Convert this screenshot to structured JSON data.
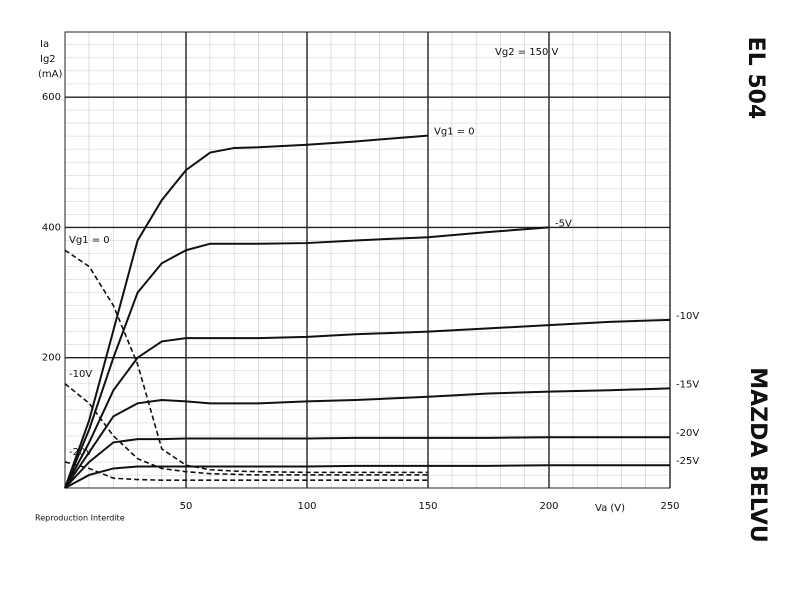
{
  "chart_data": {
    "type": "line",
    "title": "EL 504",
    "brand": "MAZDA BELVU",
    "subtitle": "Vg2 = 150 V",
    "y_label": [
      "Ia",
      "Ig2",
      "(mA)"
    ],
    "x_label": "Va (V)",
    "note": "Reproduction Interdite",
    "xlim": [
      0,
      250
    ],
    "ylim": [
      0,
      700
    ],
    "xticks": [
      50,
      100,
      150,
      200,
      250
    ],
    "yticks": [
      200,
      400,
      600
    ],
    "grid": true,
    "x": [
      0,
      10,
      20,
      30,
      40,
      50,
      60,
      70,
      80,
      100,
      120,
      150,
      175,
      200,
      225,
      250
    ],
    "series": [
      {
        "name": "Vg1 = 0",
        "color": "#111",
        "dash": false,
        "values": [
          0,
          104,
          242,
          380,
          442,
          488,
          515,
          522,
          523,
          527,
          532,
          541,
          null,
          null,
          null,
          null
        ]
      },
      {
        "name": "-5V",
        "color": "#111",
        "dash": false,
        "values": [
          0,
          90,
          200,
          300,
          345,
          365,
          375,
          375,
          375,
          376,
          380,
          385,
          393,
          400,
          null,
          null
        ]
      },
      {
        "name": "-10V",
        "color": "#111",
        "dash": false,
        "values": [
          0,
          70,
          150,
          200,
          225,
          230,
          230,
          230,
          230,
          232,
          236,
          240,
          245,
          250,
          255,
          258
        ]
      },
      {
        "name": "-15V",
        "color": "#111",
        "dash": false,
        "values": [
          0,
          55,
          110,
          130,
          135,
          133,
          130,
          130,
          130,
          133,
          135,
          140,
          145,
          148,
          150,
          153
        ]
      },
      {
        "name": "-20V",
        "color": "#111",
        "dash": false,
        "values": [
          0,
          40,
          70,
          75,
          75,
          76,
          76,
          76,
          76,
          76,
          77,
          77,
          77,
          78,
          78,
          78
        ]
      },
      {
        "name": "-25V",
        "color": "#111",
        "dash": false,
        "values": [
          0,
          20,
          30,
          33,
          33,
          33,
          33,
          33,
          33,
          33,
          34,
          34,
          34,
          35,
          35,
          35
        ]
      },
      {
        "name": "Vg1 = 0",
        "color": "#111",
        "dash": true,
        "values": [
          365,
          340,
          280,
          190,
          60,
          35,
          28,
          26,
          25,
          24,
          24,
          24,
          null,
          null,
          null,
          null
        ]
      },
      {
        "name": "-10V",
        "color": "#111",
        "dash": true,
        "values": [
          160,
          130,
          80,
          45,
          30,
          25,
          22,
          21,
          20,
          20,
          20,
          20,
          null,
          null,
          null,
          null
        ]
      },
      {
        "name": "-20V",
        "color": "#111",
        "dash": true,
        "values": [
          40,
          30,
          15,
          13,
          12,
          12,
          12,
          12,
          12,
          12,
          12,
          12,
          null,
          null,
          null,
          null
        ]
      }
    ]
  }
}
